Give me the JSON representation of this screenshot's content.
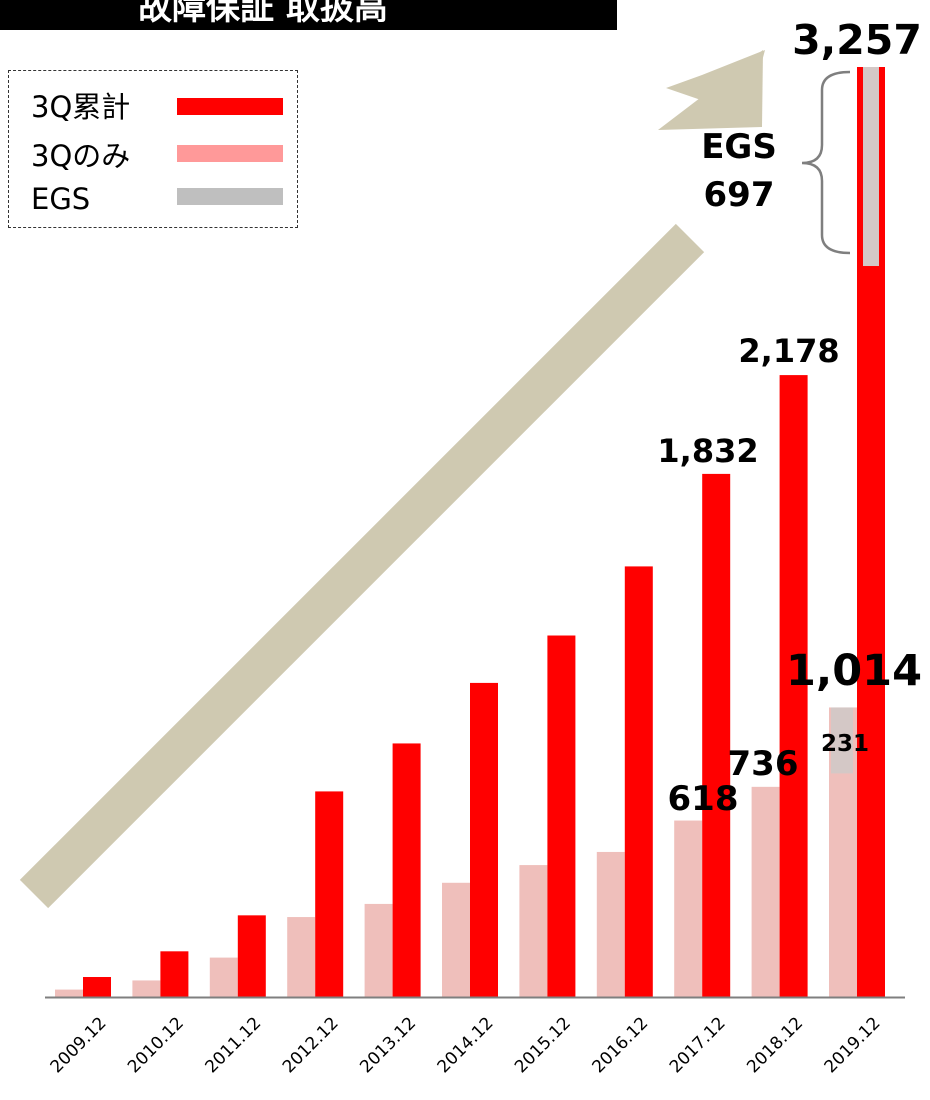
{
  "title": "故障保証 取扱高",
  "legend": {
    "items": [
      {
        "label": "3Q累計",
        "color": "#ff0000"
      },
      {
        "label": "3Qのみ",
        "color": "#ff9999"
      },
      {
        "label": "EGS",
        "color": "#bfbfbf"
      }
    ]
  },
  "colors": {
    "cumulative": "#ff0000",
    "q3_only": "#efbfbb",
    "egs": "#d4c8c6",
    "arrow": "#cfc9b1",
    "bracket": "#7f7f7f",
    "axis": "#7f7f7f"
  },
  "chart_data": {
    "type": "bar",
    "categories": [
      "2009.12",
      "2010.12",
      "2011.12",
      "2012.12",
      "2013.12",
      "2014.12",
      "2015.12",
      "2016.12",
      "2017.12",
      "2018.12",
      "2019.12"
    ],
    "series": [
      {
        "name": "3Q累計",
        "values": [
          70,
          160,
          286,
          720,
          888,
          1100,
          1266,
          1508,
          1832,
          2178,
          3257
        ]
      },
      {
        "name": "3Qのみ",
        "values": [
          26,
          58,
          138,
          280,
          326,
          400,
          462,
          508,
          618,
          736,
          1014
        ]
      }
    ],
    "egs": {
      "cumulative_2019": 697,
      "q3_only_2019": 231
    },
    "data_labels": [
      {
        "category": "2017.12",
        "series": "3Q累計",
        "text": "1,832"
      },
      {
        "category": "2018.12",
        "series": "3Q累計",
        "text": "2,178"
      },
      {
        "category": "2019.12",
        "series": "3Q累計",
        "text": "3,257"
      },
      {
        "category": "2017.12",
        "series": "3Qのみ",
        "text": "618"
      },
      {
        "category": "2018.12",
        "series": "3Qのみ",
        "text": "736"
      },
      {
        "category": "2019.12",
        "series": "3Qのみ",
        "text": "1,014"
      }
    ],
    "annotations": {
      "egs_label": "EGS",
      "egs_value": "697",
      "egs_q3_value": "231"
    },
    "ylim": [
      0,
      3257
    ],
    "grid": false,
    "legend_position": "top-left"
  }
}
